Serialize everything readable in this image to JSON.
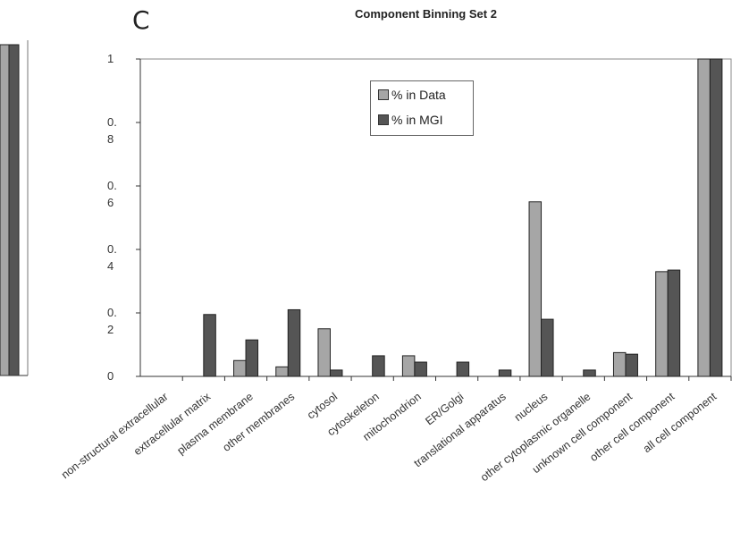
{
  "panel_label": "C",
  "chart_data": {
    "type": "bar",
    "title": "Component Binning Set 2",
    "xlabel": "",
    "ylabel": "",
    "ylim": [
      0,
      1
    ],
    "yticks": [
      "0",
      "0.\n2",
      "0.\n4",
      "0.\n6",
      "0.\n8",
      "1"
    ],
    "ytick_values": [
      0,
      0.2,
      0.4,
      0.6,
      0.8,
      1
    ],
    "grid": false,
    "legend_position": "top-center",
    "categories": [
      "non-structural extracellular",
      "extracellular matrix",
      "plasma membrane",
      "other membranes",
      "cytosol",
      "cytoskeleton",
      "mitochondrion",
      "ER/Golgi",
      "translational apparatus",
      "nucleus",
      "other cytoplasmic organelle",
      "unknown cell component",
      "other cell component",
      "all cell component"
    ],
    "series": [
      {
        "name": "% in Data",
        "color": "#a6a6a6",
        "values": [
          0,
          0,
          0.05,
          0.03,
          0.15,
          0,
          0.065,
          0,
          0,
          0.55,
          0,
          0.075,
          0.33,
          1.0
        ]
      },
      {
        "name": "% in MGI",
        "color": "#555555",
        "values": [
          0,
          0.195,
          0.115,
          0.21,
          0.02,
          0.065,
          0.045,
          0.045,
          0.02,
          0.18,
          0.02,
          0.07,
          0.335,
          1.0
        ]
      }
    ]
  },
  "left_fragment": {
    "series_colors": [
      "#a6a6a6",
      "#555555"
    ],
    "values": [
      1.0,
      1.0
    ]
  }
}
